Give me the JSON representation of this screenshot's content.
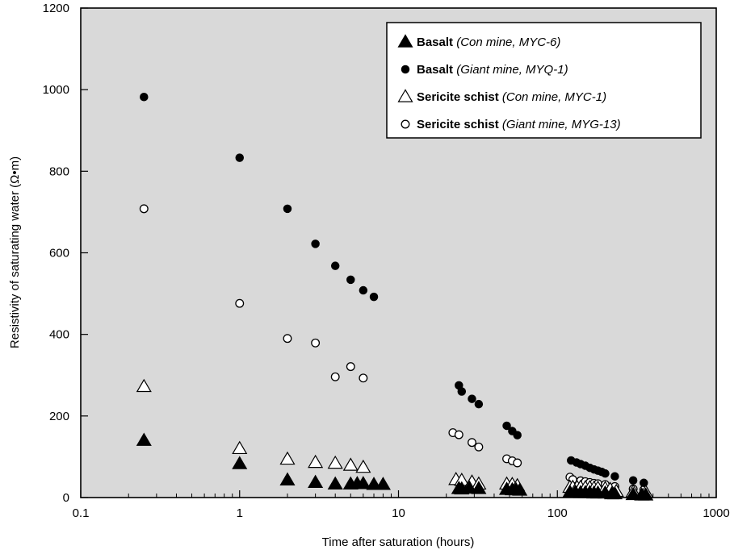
{
  "chart_data": {
    "type": "scatter",
    "title": "",
    "xlabel": "Time after saturation (hours)",
    "ylabel": "Resistivity of saturating water (Ω•m)",
    "xscale": "log",
    "xlim": [
      0.1,
      1000
    ],
    "ylim": [
      0,
      1200
    ],
    "x_ticks": [
      0.1,
      1,
      10,
      100,
      1000
    ],
    "x_tick_labels": [
      "0.1",
      "1",
      "10",
      "100",
      "1000"
    ],
    "y_ticks": [
      0,
      200,
      400,
      600,
      800,
      1000,
      1200
    ],
    "y_tick_labels": [
      "0",
      "200",
      "400",
      "600",
      "800",
      "1000",
      "1200"
    ],
    "grid": false,
    "background": "#d9d9d9",
    "legend_position": "top-right",
    "series": [
      {
        "name": "Basalt",
        "detail": "(Con mine, MYC-6)",
        "marker": "filled-triangle",
        "points": [
          [
            0.25,
            140
          ],
          [
            1,
            83
          ],
          [
            2,
            43
          ],
          [
            3,
            37
          ],
          [
            4,
            33
          ],
          [
            5,
            33
          ],
          [
            5.5,
            34
          ],
          [
            6,
            34
          ],
          [
            7,
            32
          ],
          [
            8,
            32
          ],
          [
            24,
            22
          ],
          [
            25,
            21
          ],
          [
            28,
            23
          ],
          [
            32,
            22
          ],
          [
            48,
            20
          ],
          [
            52,
            19
          ],
          [
            55,
            19
          ],
          [
            58,
            18
          ],
          [
            120,
            13
          ],
          [
            130,
            13
          ],
          [
            140,
            12
          ],
          [
            150,
            12
          ],
          [
            160,
            12
          ],
          [
            170,
            11
          ],
          [
            180,
            11
          ],
          [
            200,
            11
          ],
          [
            220,
            9
          ],
          [
            230,
            9
          ],
          [
            300,
            7
          ],
          [
            340,
            6
          ],
          [
            360,
            6
          ]
        ]
      },
      {
        "name": "Basalt",
        "detail": "(Giant mine, MYQ-1)",
        "marker": "filled-circle",
        "points": [
          [
            0.25,
            982
          ],
          [
            1,
            833
          ],
          [
            2,
            708
          ],
          [
            3,
            622
          ],
          [
            4,
            568
          ],
          [
            5,
            534
          ],
          [
            6,
            508
          ],
          [
            7,
            492
          ],
          [
            24,
            275
          ],
          [
            25,
            260
          ],
          [
            29,
            242
          ],
          [
            32,
            229
          ],
          [
            48,
            176
          ],
          [
            52,
            163
          ],
          [
            56,
            153
          ],
          [
            122,
            91
          ],
          [
            132,
            86
          ],
          [
            140,
            82
          ],
          [
            150,
            78
          ],
          [
            160,
            73
          ],
          [
            170,
            69
          ],
          [
            180,
            66
          ],
          [
            190,
            63
          ],
          [
            200,
            59
          ],
          [
            230,
            52
          ],
          [
            300,
            42
          ],
          [
            350,
            36
          ]
        ]
      },
      {
        "name": "Sericite schist",
        "detail": "(Con mine, MYC-1)",
        "marker": "open-triangle",
        "points": [
          [
            0.25,
            272
          ],
          [
            1,
            120
          ],
          [
            2,
            94
          ],
          [
            3,
            86
          ],
          [
            4,
            84
          ],
          [
            5,
            79
          ],
          [
            6,
            74
          ],
          [
            23,
            44
          ],
          [
            25,
            42
          ],
          [
            29,
            38
          ],
          [
            32,
            33
          ],
          [
            48,
            33
          ],
          [
            52,
            32
          ],
          [
            56,
            29
          ],
          [
            120,
            25
          ],
          [
            125,
            25
          ],
          [
            133,
            25
          ],
          [
            140,
            25
          ],
          [
            150,
            24
          ],
          [
            160,
            24
          ],
          [
            170,
            23
          ],
          [
            180,
            23
          ],
          [
            200,
            22
          ],
          [
            215,
            20
          ],
          [
            235,
            15
          ],
          [
            300,
            14
          ],
          [
            360,
            13
          ]
        ]
      },
      {
        "name": "Sericite schist",
        "detail": "(Giant mine, MYG-13)",
        "marker": "open-circle",
        "points": [
          [
            0.25,
            708
          ],
          [
            1,
            476
          ],
          [
            2,
            390
          ],
          [
            3,
            379
          ],
          [
            4,
            296
          ],
          [
            5,
            321
          ],
          [
            6,
            293
          ],
          [
            22,
            159
          ],
          [
            24,
            154
          ],
          [
            29,
            135
          ],
          [
            32,
            124
          ],
          [
            48,
            95
          ],
          [
            52,
            90
          ],
          [
            56,
            85
          ],
          [
            120,
            50
          ],
          [
            125,
            44
          ],
          [
            140,
            41
          ],
          [
            150,
            39
          ],
          [
            160,
            37
          ],
          [
            170,
            35
          ],
          [
            180,
            34
          ],
          [
            200,
            32
          ],
          [
            230,
            27
          ],
          [
            300,
            21
          ],
          [
            350,
            19
          ]
        ]
      }
    ]
  }
}
